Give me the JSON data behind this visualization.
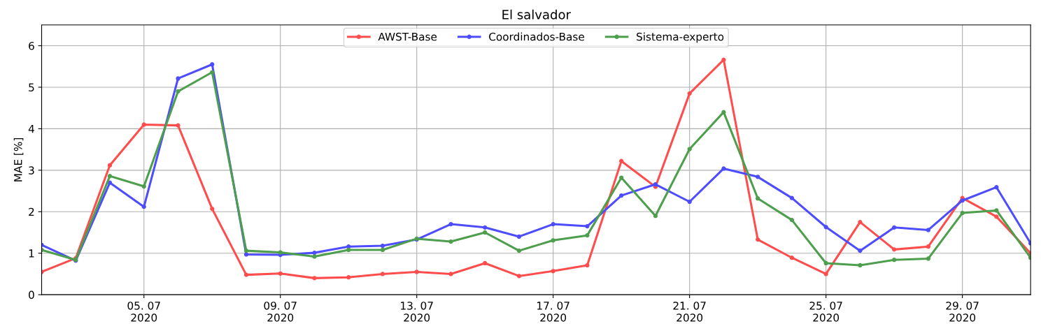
{
  "chart_data": {
    "type": "line",
    "title": "El salvador",
    "ylabel": "MAE [%]",
    "x": [
      "2020-07-02",
      "2020-07-03",
      "2020-07-04",
      "2020-07-05",
      "2020-07-06",
      "2020-07-07",
      "2020-07-08",
      "2020-07-09",
      "2020-07-10",
      "2020-07-11",
      "2020-07-12",
      "2020-07-13",
      "2020-07-14",
      "2020-07-15",
      "2020-07-16",
      "2020-07-17",
      "2020-07-18",
      "2020-07-19",
      "2020-07-20",
      "2020-07-21",
      "2020-07-22",
      "2020-07-23",
      "2020-07-24",
      "2020-07-25",
      "2020-07-26",
      "2020-07-27",
      "2020-07-28",
      "2020-07-29",
      "2020-07-30",
      "2020-07-31"
    ],
    "series": [
      {
        "name": "AWST-Base",
        "color": "#ff4d4d",
        "values": [
          0.55,
          0.88,
          3.12,
          4.1,
          4.08,
          2.07,
          0.48,
          0.51,
          0.4,
          0.42,
          0.5,
          0.55,
          0.5,
          0.76,
          0.45,
          0.57,
          0.71,
          3.22,
          2.6,
          4.85,
          5.66,
          1.33,
          0.89,
          0.5,
          1.75,
          1.09,
          1.16,
          2.33,
          1.88,
          1.0
        ]
      },
      {
        "name": "Coordinados-Base",
        "color": "#4d4dff",
        "values": [
          1.2,
          0.82,
          2.7,
          2.12,
          5.21,
          5.55,
          0.97,
          0.96,
          1.01,
          1.16,
          1.18,
          1.33,
          1.7,
          1.62,
          1.4,
          1.7,
          1.65,
          2.39,
          2.66,
          2.24,
          3.04,
          2.84,
          2.33,
          1.63,
          1.06,
          1.62,
          1.56,
          2.27,
          2.59,
          1.24
        ]
      },
      {
        "name": "Sistema-experto",
        "color": "#4d9e4d",
        "values": [
          1.08,
          0.84,
          2.86,
          2.61,
          4.9,
          5.36,
          1.06,
          1.02,
          0.92,
          1.08,
          1.08,
          1.35,
          1.28,
          1.5,
          1.06,
          1.31,
          1.43,
          2.82,
          1.9,
          3.51,
          4.4,
          2.32,
          1.8,
          0.76,
          0.71,
          0.84,
          0.87,
          1.97,
          2.03,
          0.89
        ]
      }
    ],
    "xlim": [
      "2020-07-02",
      "2020-07-31"
    ],
    "xticks": [
      {
        "value": "2020-07-05",
        "label": "05. 07\n2020"
      },
      {
        "value": "2020-07-09",
        "label": "09. 07\n2020"
      },
      {
        "value": "2020-07-13",
        "label": "13. 07\n2020"
      },
      {
        "value": "2020-07-17",
        "label": "17. 07\n2020"
      },
      {
        "value": "2020-07-21",
        "label": "21. 07\n2020"
      },
      {
        "value": "2020-07-25",
        "label": "25. 07\n2020"
      },
      {
        "value": "2020-07-29",
        "label": "29. 07\n2020"
      }
    ],
    "ylim": [
      0,
      6.5
    ],
    "yticks": [
      0,
      1,
      2,
      3,
      4,
      5,
      6
    ],
    "grid": true,
    "legend": "top",
    "marker": "circle",
    "line_style": "solid"
  }
}
